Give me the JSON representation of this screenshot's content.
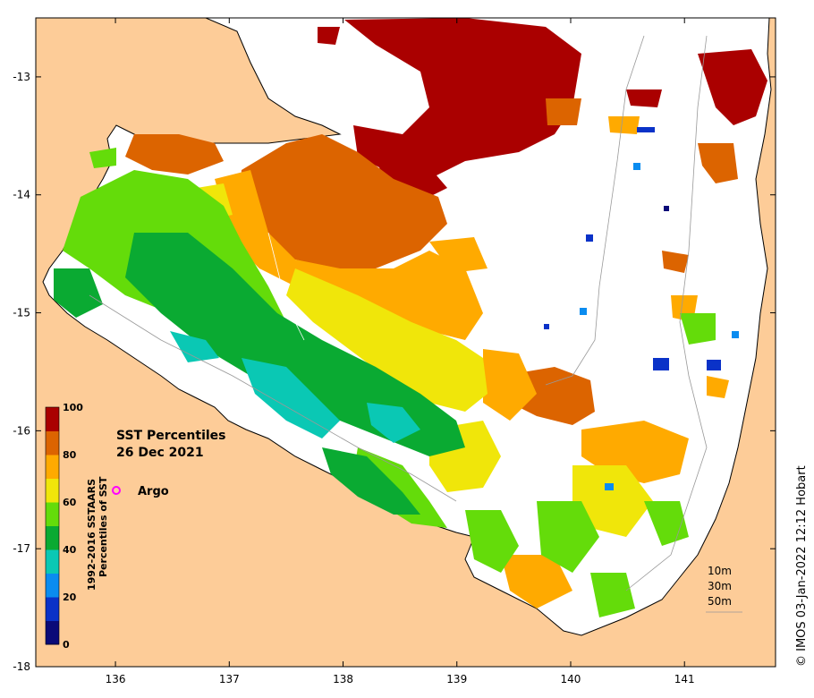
{
  "map": {
    "title": "SST Percentiles",
    "date": "26 Dec 2021",
    "credit": "© IMOS 03-Jan-2022 12:12 Hobart",
    "lon_ticks": [
      "136",
      "137",
      "138",
      "139",
      "140",
      "141"
    ],
    "lat_ticks": [
      "-13",
      "-14",
      "-15",
      "-16",
      "-17",
      "-18"
    ],
    "lon_range": [
      135.3,
      141.8
    ],
    "lat_range": [
      -18.0,
      -12.5
    ]
  },
  "colorbar": {
    "title_line1": "1992-2016 SSTAARS",
    "title_line2": "Percentiles of SST",
    "ticks": [
      "0",
      "20",
      "40",
      "60",
      "80",
      "100"
    ],
    "colors": [
      "#0a0a78",
      "#0a32c8",
      "#0a8cf0",
      "#0ac8b4",
      "#0aaa32",
      "#64dc0a",
      "#f0e60a",
      "#ffaa00",
      "#dc6400",
      "#aa0000"
    ]
  },
  "legend": {
    "argo_label": "Argo",
    "argo_color": "#ff00ff"
  },
  "depth_labels": [
    "10m",
    "30m",
    "50m"
  ],
  "colors": {
    "land": "#fdcc98",
    "nodata": "#ffffff"
  }
}
